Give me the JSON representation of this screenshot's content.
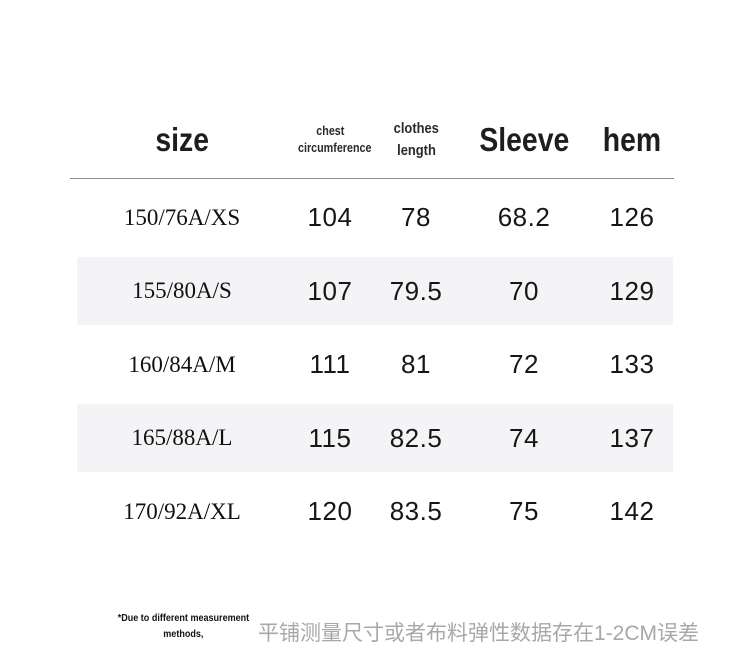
{
  "size_chart": {
    "header": {
      "size": "size",
      "chest": {
        "line1": "chest",
        "line2": "circumference"
      },
      "clothes_length": {
        "line1": "clothes",
        "line2": "length"
      },
      "sleeve": "Sleeve",
      "hem": "hem"
    },
    "rows": [
      {
        "size_label": "150/76A/XS",
        "chest": "104",
        "clothes_length": "78",
        "sleeve": "68.2",
        "hem": "126"
      },
      {
        "size_label": "155/80A/S",
        "chest": "107",
        "clothes_length": "79.5",
        "sleeve": "70",
        "hem": "129"
      },
      {
        "size_label": "160/84A/M",
        "chest": "111",
        "clothes_length": "81",
        "sleeve": "72",
        "hem": "133"
      },
      {
        "size_label": "165/88A/L",
        "chest": "115",
        "clothes_length": "82.5",
        "sleeve": "74",
        "hem": "137"
      },
      {
        "size_label": "170/92A/XL",
        "chest": "120",
        "clothes_length": "83.5",
        "sleeve": "75",
        "hem": "142"
      }
    ]
  },
  "footnote": {
    "en_line1": "*Due to different measurement",
    "en_line2": "methods,",
    "zh": "平铺测量尺寸或者布料弹性数据存在1-2CM误差"
  },
  "colors": {
    "background": "#ffffff",
    "alt_row_bg": "#f4f4f6",
    "divider": "#8f8f8f",
    "primary_text": "#1a1a1a",
    "zh_note_text": "#a8a8a8"
  },
  "chart_data": {
    "type": "table",
    "columns": [
      "size",
      "chest circumference",
      "clothes length",
      "Sleeve",
      "hem"
    ],
    "rows": [
      [
        "150/76A/XS",
        104,
        78,
        68.2,
        126
      ],
      [
        "155/80A/S",
        107,
        79.5,
        70,
        129
      ],
      [
        "160/84A/M",
        111,
        81,
        72,
        133
      ],
      [
        "165/88A/L",
        115,
        82.5,
        74,
        137
      ],
      [
        "170/92A/XL",
        120,
        83.5,
        75,
        142
      ]
    ],
    "notes": [
      "*Due to different measurement methods,",
      "平铺测量尺寸或者布料弹性数据存在1-2CM误差"
    ]
  }
}
